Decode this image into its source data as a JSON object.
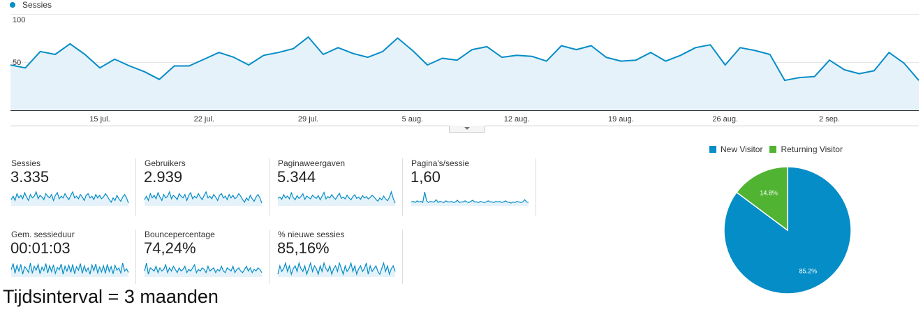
{
  "chart_data": [
    {
      "type": "line",
      "series": [
        {
          "name": "Sessies",
          "values": [
            47,
            44,
            61,
            58,
            69,
            58,
            44,
            53,
            46,
            40,
            32,
            46,
            46,
            53,
            60,
            55,
            47,
            57,
            60,
            64,
            76,
            58,
            65,
            59,
            55,
            61,
            75,
            62,
            47,
            54,
            52,
            63,
            66,
            55,
            57,
            56,
            51,
            67,
            63,
            67,
            55,
            51,
            52,
            60,
            51,
            57,
            65,
            68,
            47,
            65,
            62,
            58,
            31,
            34,
            35,
            52,
            42,
            38,
            41,
            60,
            49,
            31
          ]
        }
      ],
      "x_tick_labels": [
        "15 jul.",
        "22 jul.",
        "29 jul.",
        "5 aug.",
        "12 aug.",
        "19 aug.",
        "26 aug.",
        "2 sep."
      ],
      "y_tick_labels": [
        "100",
        "50"
      ],
      "ylim": [
        0,
        100
      ],
      "legend": "top-left",
      "color": "#058dc7",
      "fill_color": "#e5f2f9"
    },
    {
      "type": "pie",
      "labels": [
        "New Visitor",
        "Returning Visitor"
      ],
      "values": [
        85.2,
        14.8
      ],
      "slice_labels": [
        "85.2%",
        "14.8%"
      ],
      "colors": [
        "#058dc7",
        "#50b432"
      ],
      "legend": "top"
    }
  ],
  "metrics": [
    {
      "label": "Sessies",
      "value": "3.335",
      "spark": [
        48,
        52,
        47,
        55,
        50,
        53,
        49,
        56,
        51,
        47,
        54,
        50,
        52,
        57,
        49,
        53,
        51,
        48,
        55,
        52,
        50,
        54,
        47,
        53,
        56,
        49,
        52,
        50,
        55,
        51,
        48,
        53,
        57,
        50,
        52,
        49,
        54,
        51,
        47,
        53,
        55,
        50,
        52,
        48,
        54,
        50,
        53,
        49,
        51,
        55,
        52,
        48,
        45,
        50,
        47,
        53,
        49,
        46,
        51,
        54,
        50,
        44
      ]
    },
    {
      "label": "Gebruikers",
      "value": "2.939",
      "spark": [
        47,
        51,
        46,
        54,
        49,
        52,
        48,
        55,
        50,
        46,
        53,
        49,
        51,
        56,
        48,
        52,
        50,
        47,
        54,
        51,
        49,
        53,
        46,
        52,
        55,
        48,
        51,
        49,
        54,
        50,
        47,
        52,
        56,
        49,
        51,
        48,
        53,
        50,
        46,
        52,
        54,
        49,
        51,
        47,
        53,
        49,
        52,
        48,
        50,
        54,
        51,
        47,
        44,
        49,
        46,
        52,
        48,
        45,
        50,
        53,
        49,
        43
      ]
    },
    {
      "label": "Paginaweergaven",
      "value": "5.344",
      "spark": [
        50,
        53,
        48,
        58,
        51,
        55,
        49,
        62,
        52,
        47,
        56,
        50,
        54,
        60,
        48,
        55,
        52,
        49,
        57,
        53,
        50,
        56,
        47,
        55,
        63,
        49,
        54,
        51,
        58,
        52,
        48,
        55,
        61,
        50,
        53,
        49,
        57,
        51,
        47,
        54,
        58,
        50,
        53,
        48,
        56,
        51,
        54,
        49,
        52,
        57,
        53,
        48,
        44,
        51,
        47,
        55,
        49,
        45,
        52,
        64,
        50,
        40
      ]
    },
    {
      "label": "Pagina's/sessie",
      "value": "1,60",
      "spark": [
        50,
        51,
        49,
        52,
        50,
        51,
        49,
        68,
        52,
        49,
        51,
        50,
        50,
        54,
        49,
        51,
        50,
        49,
        52,
        50,
        50,
        51,
        49,
        50,
        53,
        49,
        50,
        50,
        52,
        50,
        49,
        51,
        53,
        50,
        50,
        49,
        51,
        50,
        49,
        50,
        52,
        50,
        50,
        49,
        51,
        50,
        51,
        49,
        50,
        52,
        50,
        49,
        48,
        50,
        49,
        51,
        50,
        49,
        50,
        54,
        50,
        49
      ]
    },
    {
      "label": "Gem. sessieduur",
      "value": "00:01:03",
      "spark": [
        48,
        62,
        40,
        58,
        45,
        60,
        38,
        55,
        50,
        42,
        63,
        40,
        56,
        47,
        60,
        39,
        54,
        46,
        62,
        41,
        57,
        44,
        59,
        40,
        53,
        48,
        61,
        38,
        56,
        45,
        58,
        42,
        60,
        39,
        55,
        47,
        62,
        40,
        57,
        44,
        52,
        38,
        59,
        46,
        61,
        41,
        54,
        43,
        57,
        40,
        60,
        44,
        55,
        39,
        58,
        47,
        52,
        41,
        63,
        45,
        50,
        42
      ]
    },
    {
      "label": "Bouncepercentage",
      "value": "74,24%",
      "spark": [
        50,
        55,
        48,
        52,
        51,
        50,
        53,
        49,
        52,
        50,
        51,
        54,
        49,
        52,
        50,
        53,
        51,
        49,
        52,
        50,
        51,
        53,
        49,
        51,
        50,
        52,
        54,
        49,
        51,
        50,
        52,
        51,
        49,
        53,
        50,
        51,
        52,
        49,
        51,
        50,
        53,
        50,
        49,
        52,
        51,
        50,
        53,
        49,
        51,
        52,
        50,
        49,
        51,
        53,
        50,
        52,
        49,
        51,
        50,
        52,
        51,
        49
      ]
    },
    {
      "label": "% nieuwe sessies",
      "value": "85,16%",
      "spark": [
        49,
        52,
        50,
        51,
        53,
        50,
        52,
        49,
        51,
        52,
        50,
        53,
        51,
        50,
        52,
        49,
        51,
        53,
        50,
        52,
        51,
        49,
        52,
        50,
        53,
        51,
        50,
        52,
        49,
        51,
        52,
        50,
        53,
        51,
        49,
        52,
        50,
        51,
        53,
        50,
        52,
        49,
        51,
        52,
        50,
        51,
        53,
        49,
        52,
        50,
        51,
        52,
        50,
        49,
        51,
        53,
        50,
        52,
        49,
        51,
        52,
        50
      ]
    }
  ],
  "footer_note": "Tijdsinterval = 3 maanden"
}
